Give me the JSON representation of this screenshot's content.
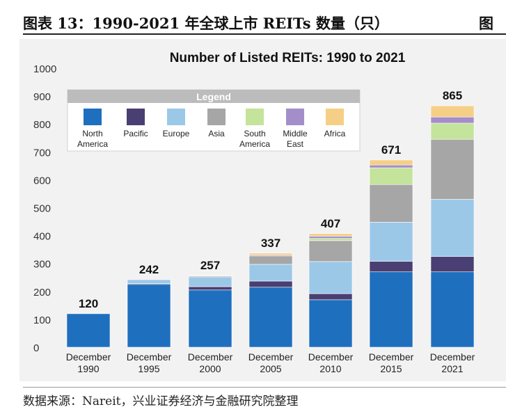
{
  "figure": {
    "title": "图表 13：1990-2021 年全球上市 REITs 数量（只）",
    "title_continued": "图",
    "source": "数据来源：Nareit，兴业证券经济与金融研究院整理"
  },
  "chart_data": {
    "type": "bar",
    "stacked": true,
    "title": "Number of Listed REITs: 1990 to 2021",
    "categories": [
      [
        "December",
        "1990"
      ],
      [
        "December",
        "1995"
      ],
      [
        "December",
        "2000"
      ],
      [
        "December",
        "2005"
      ],
      [
        "December",
        "2010"
      ],
      [
        "December",
        "2015"
      ],
      [
        "December",
        "2021"
      ]
    ],
    "totals": [
      120,
      242,
      257,
      337,
      407,
      671,
      865
    ],
    "ylim": [
      0,
      1000
    ],
    "yticks": [
      0,
      100,
      200,
      300,
      400,
      500,
      600,
      700,
      800,
      900,
      1000
    ],
    "grid": false,
    "legend": {
      "title": "Legend",
      "placement": "top-left",
      "entries": [
        [
          "North",
          "America"
        ],
        [
          "Pacific"
        ],
        [
          "Europe"
        ],
        [
          "Asia"
        ],
        [
          "South",
          "America"
        ],
        [
          "Middle",
          "East"
        ],
        [
          "Africa"
        ]
      ]
    },
    "series": [
      {
        "color": "#1f6fbf",
        "values": [
          120,
          225,
          205,
          215,
          170,
          270,
          270
        ]
      },
      {
        "color": "#4a3f72",
        "values": [
          0,
          3,
          12,
          22,
          22,
          38,
          55
        ]
      },
      {
        "color": "#9cc8e8",
        "values": [
          0,
          14,
          35,
          60,
          115,
          140,
          205
        ]
      },
      {
        "color": "#a6a6a6",
        "values": [
          0,
          0,
          3,
          30,
          75,
          135,
          215
        ]
      },
      {
        "color": "#c4e39b",
        "values": [
          0,
          0,
          0,
          0,
          8,
          60,
          58
        ]
      },
      {
        "color": "#a48ec9",
        "values": [
          0,
          0,
          0,
          3,
          8,
          10,
          22
        ]
      },
      {
        "color": "#f6cf86",
        "values": [
          0,
          0,
          2,
          7,
          9,
          18,
          40
        ]
      }
    ]
  }
}
